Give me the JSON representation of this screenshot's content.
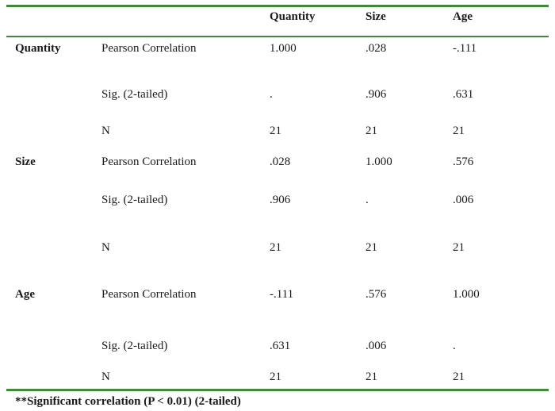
{
  "table": {
    "columns": [
      "Quantity",
      "Size",
      "Age"
    ],
    "groups": [
      {
        "label": "Quantity",
        "rows": [
          {
            "stat": "Pearson Correlation",
            "values": [
              "1.000",
              ".028",
              "-.111"
            ]
          },
          {
            "stat": "Sig. (2-tailed)",
            "values": [
              ".",
              ".906",
              ".631"
            ]
          },
          {
            "stat": "N",
            "values": [
              "21",
              "21",
              "21"
            ]
          }
        ]
      },
      {
        "label": "Size",
        "rows": [
          {
            "stat": "Pearson Correlation",
            "values": [
              ".028",
              "1.000",
              ".576"
            ]
          },
          {
            "stat": "Sig. (2-tailed)",
            "values": [
              ".906",
              ".",
              ".006"
            ]
          },
          {
            "stat": "N",
            "values": [
              "21",
              "21",
              "21"
            ]
          }
        ]
      },
      {
        "label": "Age",
        "rows": [
          {
            "stat": "Pearson Correlation",
            "values": [
              "-.111",
              ".576",
              "1.000"
            ]
          },
          {
            "stat": "Sig. (2-tailed)",
            "values": [
              ".631",
              ".006",
              "."
            ]
          },
          {
            "stat": "N",
            "values": [
              "21",
              "21",
              "21"
            ]
          }
        ]
      }
    ],
    "footnote": "**Significant correlation (P < 0.01) (2-tailed)"
  },
  "colors": {
    "rule": "#3f8b3a",
    "text": "#1a1a1a"
  }
}
